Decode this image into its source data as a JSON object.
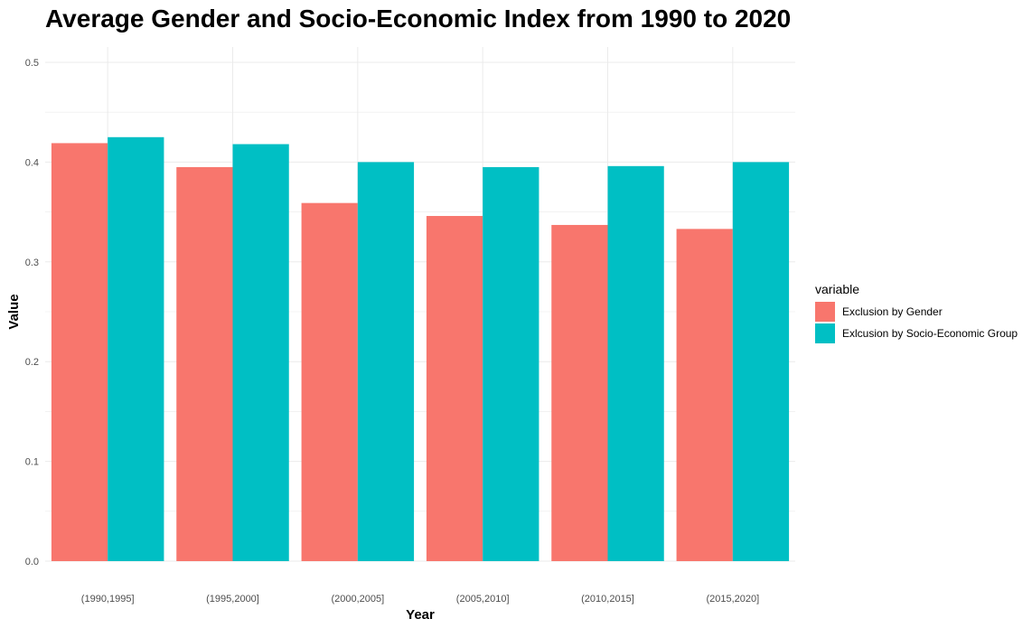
{
  "chart_data": {
    "type": "bar",
    "title": "Average Gender and Socio-Economic Index from 1990 to 2020",
    "xlabel": "Year",
    "ylabel": "Value",
    "categories": [
      "(1990,1995]",
      "(1995,2000]",
      "(2000,2005]",
      "(2005,2010]",
      "(2010,2015]",
      "(2015,2020]"
    ],
    "series": [
      {
        "name": "Exclusion by Gender",
        "color": "#F8766D",
        "values": [
          0.419,
          0.395,
          0.359,
          0.346,
          0.337,
          0.333
        ]
      },
      {
        "name": "Exlcusion by Socio-Economic Group",
        "color": "#00BFC4",
        "values": [
          0.425,
          0.418,
          0.4,
          0.395,
          0.396,
          0.4
        ]
      }
    ],
    "ylim": [
      0,
      0.5
    ],
    "yticks": [
      "0.0",
      "0.1",
      "0.2",
      "0.3",
      "0.4",
      "0.5"
    ],
    "grid": true,
    "legend_title": "variable",
    "legend_position": "right"
  }
}
